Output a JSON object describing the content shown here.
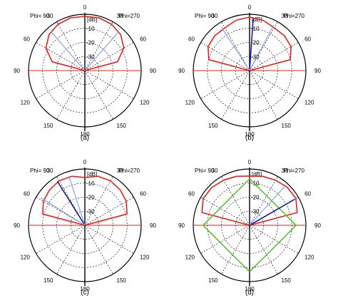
{
  "chart_data": [
    {
      "panel": "a",
      "type": "polar",
      "caption": "(a)",
      "radial_unit": "dB",
      "r_ticks": [
        -10,
        -20,
        -30
      ],
      "angle_labels": [
        "0",
        "30",
        "60",
        "90",
        "120",
        "150",
        "180",
        "30",
        "60",
        "90",
        "120",
        "150"
      ],
      "phi_left": "Phi= 90",
      "phi_right": "Phi=270",
      "series": [
        {
          "color": "#e8211d",
          "theta_deg": [
            0,
            15,
            30,
            45,
            60,
            75,
            90
          ],
          "r_db": [
            -1.5,
            -1.2,
            -2.0,
            -4.0,
            -8.0,
            -16.0,
            -40.0
          ]
        }
      ],
      "beams": [
        {
          "color": "#7aa0e8",
          "side": "left",
          "theta_deg": 41
        },
        {
          "color": "#7aa0e8",
          "side": "right",
          "theta_deg": 41
        }
      ]
    },
    {
      "panel": "b",
      "type": "polar",
      "caption": "(b)",
      "radial_unit": "dB",
      "r_ticks": [
        -10,
        -20,
        -30
      ],
      "angle_labels": [
        "0",
        "30",
        "60",
        "90",
        "120",
        "150",
        "180",
        "30",
        "60",
        "90",
        "120",
        "150"
      ],
      "phi_left": "Phi= 90",
      "phi_right": "Phi=270",
      "series": [
        {
          "color": "#e8211d",
          "theta_deg": [
            0,
            15,
            30,
            45,
            60,
            75,
            90
          ],
          "r_db": [
            -2.0,
            -3.0,
            -5.0,
            -5.0,
            -6.0,
            -10.0,
            -40.0
          ]
        }
      ],
      "beams": [
        {
          "color": "#1a1aa0",
          "side": "right",
          "theta_deg": 4
        },
        {
          "color": "#7aa0e8",
          "side": "right",
          "theta_deg": 28
        },
        {
          "color": "#7aa0e8",
          "side": "left",
          "theta_deg": 33
        }
      ]
    },
    {
      "panel": "c",
      "type": "polar",
      "caption": "(c)",
      "radial_unit": "dB",
      "r_ticks": [
        -10,
        -20,
        -30
      ],
      "angle_labels": [
        "0",
        "30",
        "60",
        "90",
        "120",
        "150",
        "180",
        "30",
        "60",
        "90",
        "120",
        "150"
      ],
      "phi_left": "Phi= 90",
      "phi_right": "Phi=270",
      "series": [
        {
          "color": "#e8211d",
          "theta_deg": [
            0,
            15,
            30,
            45,
            60,
            75,
            90
          ],
          "r_db": [
            -6.0,
            -4.0,
            -3.5,
            -4.5,
            -6.0,
            -9.0,
            -40.0
          ]
        }
      ],
      "beams": [
        {
          "color": "#1a1aa0",
          "side": "left",
          "theta_deg": 32
        },
        {
          "color": "#7aa0e8",
          "side": "left",
          "theta_deg": 18
        },
        {
          "color": "#7aa0e8",
          "side": "left",
          "theta_deg": 58
        }
      ]
    },
    {
      "panel": "d",
      "type": "polar",
      "caption": "(d)",
      "radial_unit": "dB",
      "r_ticks": [
        -10,
        -20,
        -30
      ],
      "angle_labels": [
        "0",
        "30",
        "60",
        "90",
        "120",
        "150",
        "180",
        "30",
        "60",
        "90",
        "120",
        "150"
      ],
      "phi_left": "Phi= 90",
      "phi_right": "Phi=270",
      "series": [
        {
          "color": "#e8211d",
          "theta_deg": [
            0,
            15,
            30,
            45,
            60,
            75,
            90
          ],
          "r_db": [
            -5.0,
            -4.0,
            -3.0,
            -2.0,
            -2.0,
            -5.0,
            -40.0
          ]
        },
        {
          "color": "#5cc231",
          "theta_deg": [
            0,
            90,
            180
          ],
          "r_db": [
            -7.0,
            -7.0,
            -7.0
          ]
        }
      ],
      "beams": [
        {
          "color": "#1a1aa0",
          "side": "right",
          "theta_deg": 60
        },
        {
          "color": "#7aa0e8",
          "side": "right",
          "theta_deg": 42
        }
      ]
    }
  ]
}
